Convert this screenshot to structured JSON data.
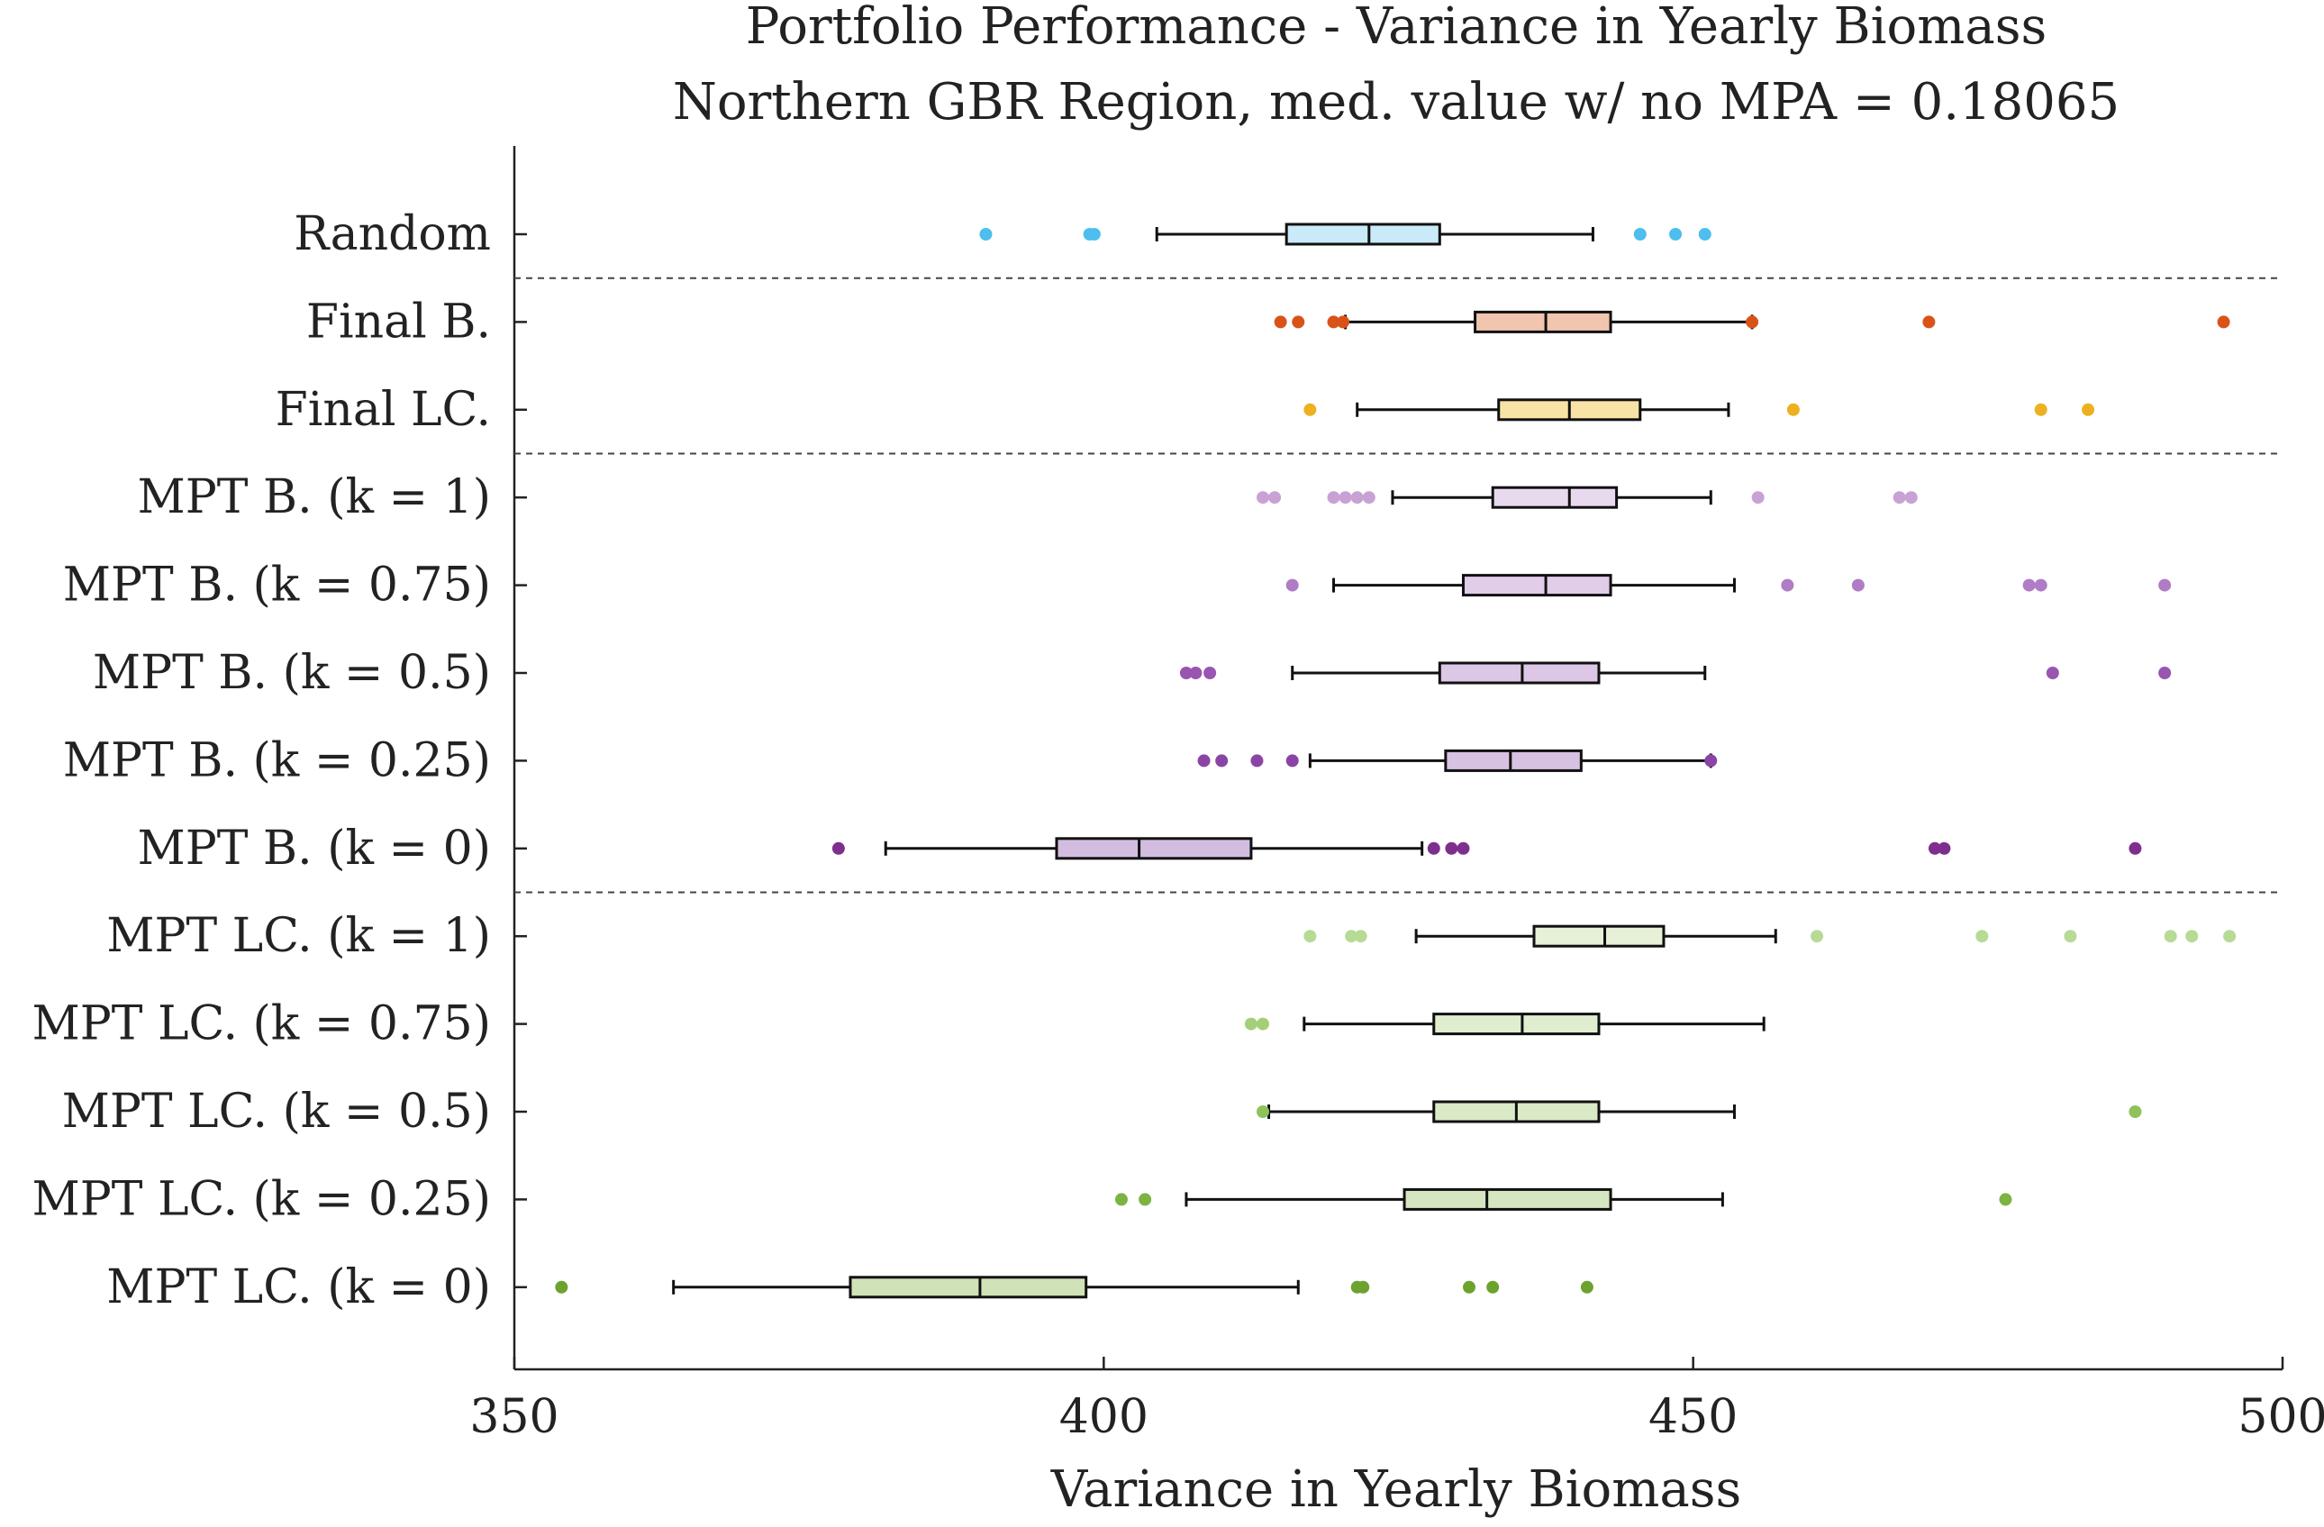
{
  "chart_data": {
    "type": "boxplot",
    "orientation": "horizontal",
    "title": "Portfolio Performance - Variance in Yearly Biomass",
    "subtitle": "Northern GBR Region, med. value w/ no MPA = 0.18065",
    "xlabel": "Variance in Yearly Biomass",
    "xlim": [
      350,
      500
    ],
    "xticks": [
      350,
      400,
      450,
      500
    ],
    "grid": false,
    "separators_after": [
      "Random",
      "Final LC.",
      "MPT B. (k = 0)"
    ],
    "series": [
      {
        "name": "Random",
        "color": "#4DBEEE",
        "fill": "#C9EAF8",
        "whisker_low": 404.5,
        "q1": 415.5,
        "median": 422.5,
        "q3": 428.5,
        "whisker_high": 441.5,
        "outliers": [
          390,
          398.8,
          399.2,
          445.5,
          448.5,
          451
        ]
      },
      {
        "name": "Final B.",
        "color": "#D95319",
        "fill": "#F2C5AE",
        "whisker_low": 420.5,
        "q1": 431.5,
        "median": 437.5,
        "q3": 443,
        "whisker_high": 455,
        "outliers": [
          415,
          416.5,
          419.5,
          420.3,
          455,
          470,
          495
        ]
      },
      {
        "name": "Final LC.",
        "color": "#EDB120",
        "fill": "#F9E2A6",
        "whisker_low": 421.5,
        "q1": 433.5,
        "median": 439.5,
        "q3": 445.5,
        "whisker_high": 453,
        "outliers": [
          417.5,
          458.5,
          479.5,
          483.5
        ]
      },
      {
        "name": "MPT B. (k = 1)",
        "color": "#C8A2D4",
        "fill": "#E9D9EF",
        "whisker_low": 424.5,
        "q1": 433,
        "median": 439.5,
        "q3": 443.5,
        "whisker_high": 451.5,
        "outliers": [
          413.5,
          414.5,
          419.5,
          420.5,
          421.5,
          422.5,
          455.5,
          467.5,
          468.5
        ]
      },
      {
        "name": "MPT B. (k = 0.75)",
        "color": "#B07CC6",
        "fill": "#E1CCEA",
        "whisker_low": 419.5,
        "q1": 430.5,
        "median": 437.5,
        "q3": 443,
        "whisker_high": 453.5,
        "outliers": [
          416,
          458,
          464,
          478.5,
          479.5,
          490
        ]
      },
      {
        "name": "MPT B. (k = 0.5)",
        "color": "#9955B0",
        "fill": "#DCC7E6",
        "whisker_low": 416,
        "q1": 428.5,
        "median": 435.5,
        "q3": 442,
        "whisker_high": 451,
        "outliers": [
          407,
          407.8,
          409,
          480.5,
          490
        ]
      },
      {
        "name": "MPT B. (k = 0.25)",
        "color": "#8A44A6",
        "fill": "#D7C2E3",
        "whisker_low": 417.5,
        "q1": 429,
        "median": 434.5,
        "q3": 440.5,
        "whisker_high": 451.5,
        "outliers": [
          408.5,
          410,
          413,
          416,
          451.5
        ]
      },
      {
        "name": "MPT B. (k = 0)",
        "color": "#7E2F8E",
        "fill": "#D2BDE0",
        "whisker_low": 381.5,
        "q1": 396,
        "median": 403,
        "q3": 412.5,
        "whisker_high": 427,
        "outliers": [
          377.5,
          428,
          429.5,
          430.5,
          470.5,
          471.3,
          487.5
        ]
      },
      {
        "name": "MPT LC. (k = 1)",
        "color": "#B7DA95",
        "fill": "#E6F1D7",
        "whisker_low": 426.5,
        "q1": 436.5,
        "median": 442.5,
        "q3": 447.5,
        "whisker_high": 457,
        "outliers": [
          417.5,
          421,
          421.8,
          460.5,
          474.5,
          482,
          490.5,
          492.3,
          495.5
        ]
      },
      {
        "name": "MPT LC. (k = 0.75)",
        "color": "#A4CF78",
        "fill": "#E0EECF",
        "whisker_low": 417,
        "q1": 428,
        "median": 435.5,
        "q3": 442,
        "whisker_high": 456,
        "outliers": [
          412.5,
          413.5
        ]
      },
      {
        "name": "MPT LC. (k = 0.5)",
        "color": "#8FC25A",
        "fill": "#DAEAC7",
        "whisker_low": 414,
        "q1": 428,
        "median": 435,
        "q3": 442,
        "whisker_high": 453.5,
        "outliers": [
          413.5,
          487.5
        ]
      },
      {
        "name": "MPT LC. (k = 0.25)",
        "color": "#7CB342",
        "fill": "#D5E6C0",
        "whisker_low": 407,
        "q1": 425.5,
        "median": 432.5,
        "q3": 443,
        "whisker_high": 452.5,
        "outliers": [
          401.5,
          403.5,
          476.5
        ]
      },
      {
        "name": "MPT LC. (k = 0)",
        "color": "#6BA32E",
        "fill": "#D0E2B8",
        "whisker_low": 363.5,
        "q1": 378.5,
        "median": 389.5,
        "q3": 398.5,
        "whisker_high": 416.5,
        "outliers": [
          354,
          421.5,
          422,
          431,
          433,
          441
        ]
      }
    ]
  }
}
